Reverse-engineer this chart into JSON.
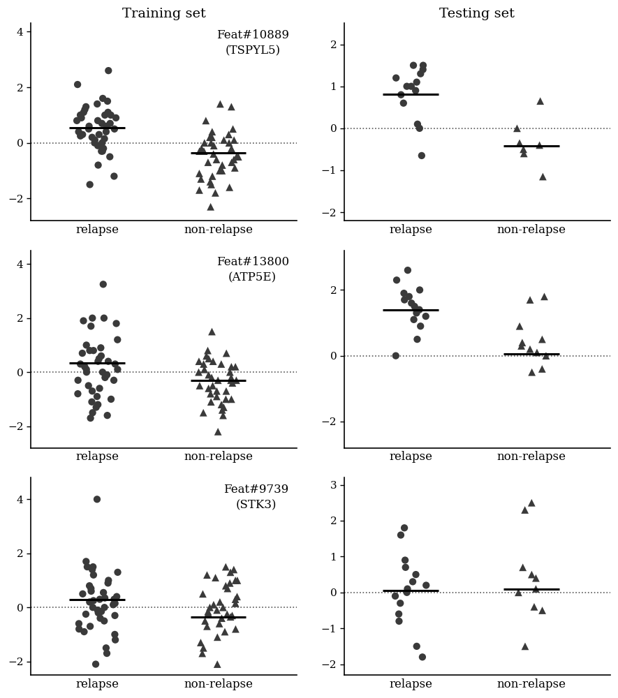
{
  "panels": [
    {
      "col_title": "Training set",
      "annotation": "Feat#10889\n(TSPYL5)",
      "ylim": [
        -2.8,
        4.3
      ],
      "yticks": [
        -2,
        0,
        2,
        4
      ],
      "relapse_mean": 0.55,
      "nonrelapse_mean": -0.35,
      "relapse_dots": [
        2.6,
        2.1,
        1.6,
        1.5,
        1.4,
        1.3,
        1.2,
        1.1,
        1.1,
        1.0,
        1.0,
        0.9,
        0.8,
        0.8,
        0.7,
        0.7,
        0.6,
        0.5,
        0.5,
        0.4,
        0.3,
        0.3,
        0.2,
        0.15,
        0.1,
        0.0,
        0.0,
        -0.1,
        -0.2,
        -0.3,
        -0.5,
        -0.8,
        -1.2,
        -1.5,
        0.25,
        0.6,
        0.9,
        1.0,
        0.4,
        -0.3
      ],
      "nonrelapse_triangles": [
        1.4,
        1.3,
        0.8,
        0.5,
        0.4,
        0.3,
        0.2,
        0.1,
        0.0,
        0.0,
        -0.1,
        -0.2,
        -0.2,
        -0.3,
        -0.4,
        -0.5,
        -0.5,
        -0.6,
        -0.7,
        -0.7,
        -0.8,
        -0.9,
        -1.0,
        -1.0,
        -1.1,
        -1.2,
        -1.3,
        -1.4,
        -1.5,
        -1.6,
        -1.7,
        -1.8,
        -2.3,
        0.1,
        0.2,
        -0.3,
        -0.6,
        0.0
      ]
    },
    {
      "col_title": "Testing set",
      "annotation": "",
      "ylim": [
        -2.2,
        2.5
      ],
      "yticks": [
        -2,
        -1,
        0,
        1,
        2
      ],
      "relapse_mean": 0.82,
      "nonrelapse_mean": -0.42,
      "relapse_dots": [
        1.5,
        1.5,
        1.4,
        1.3,
        1.2,
        1.1,
        1.0,
        1.0,
        0.9,
        0.8,
        0.6,
        0.1,
        0.0,
        -0.65
      ],
      "nonrelapse_triangles": [
        0.65,
        0.0,
        -0.35,
        -0.4,
        -0.5,
        -0.6,
        -1.15
      ]
    },
    {
      "col_title": "",
      "annotation": "Feat#13800\n(ATP5E)",
      "ylim": [
        -2.8,
        4.5
      ],
      "yticks": [
        -2,
        0,
        2,
        4
      ],
      "relapse_mean": 0.35,
      "nonrelapse_mean": -0.3,
      "relapse_dots": [
        3.25,
        2.0,
        2.0,
        1.9,
        1.8,
        1.7,
        1.2,
        1.0,
        0.9,
        0.8,
        0.7,
        0.5,
        0.4,
        0.4,
        0.3,
        0.3,
        0.2,
        0.1,
        0.1,
        0.0,
        0.0,
        -0.1,
        -0.2,
        -0.3,
        -0.3,
        -0.5,
        -0.6,
        -0.7,
        -0.8,
        -0.9,
        -1.0,
        -1.1,
        -1.2,
        -1.3,
        -1.5,
        -1.6,
        -1.7,
        0.6,
        0.8
      ],
      "nonrelapse_triangles": [
        1.5,
        0.8,
        0.7,
        0.6,
        0.5,
        0.4,
        0.3,
        0.2,
        0.2,
        0.1,
        0.0,
        0.0,
        -0.1,
        -0.2,
        -0.2,
        -0.3,
        -0.3,
        -0.4,
        -0.5,
        -0.5,
        -0.6,
        -0.7,
        -0.7,
        -0.8,
        -0.9,
        -1.0,
        -1.0,
        -1.1,
        -1.2,
        -1.3,
        -1.4,
        -1.5,
        -1.6,
        -2.2,
        0.3,
        0.4,
        -0.3
      ]
    },
    {
      "col_title": "",
      "annotation": "",
      "ylim": [
        -2.8,
        3.2
      ],
      "yticks": [
        -2,
        0,
        2
      ],
      "relapse_mean": 1.4,
      "nonrelapse_mean": 0.05,
      "relapse_dots": [
        2.6,
        2.3,
        2.0,
        1.9,
        1.8,
        1.7,
        1.6,
        1.5,
        1.4,
        1.3,
        1.2,
        1.1,
        0.9,
        0.5,
        0.0
      ],
      "nonrelapse_triangles": [
        1.8,
        1.7,
        0.9,
        0.5,
        0.4,
        0.3,
        0.2,
        0.1,
        0.0,
        -0.4,
        -0.5
      ]
    },
    {
      "col_title": "",
      "annotation": "Feat#9739\n(STK3)",
      "ylim": [
        -2.5,
        4.8
      ],
      "yticks": [
        -2,
        0,
        2,
        4
      ],
      "relapse_mean": 0.3,
      "nonrelapse_mean": -0.35,
      "relapse_dots": [
        4.0,
        1.7,
        1.5,
        1.5,
        1.4,
        1.3,
        1.2,
        1.0,
        0.9,
        0.8,
        0.7,
        0.6,
        0.5,
        0.4,
        0.3,
        0.3,
        0.2,
        0.1,
        0.0,
        0.0,
        -0.1,
        -0.2,
        -0.3,
        -0.4,
        -0.5,
        -0.6,
        -0.7,
        -0.8,
        -0.9,
        -1.0,
        -1.2,
        -1.5,
        -1.7,
        -2.1,
        0.15,
        0.25,
        0.35,
        0.55,
        -0.15,
        -0.25
      ],
      "nonrelapse_triangles": [
        1.5,
        1.4,
        1.3,
        1.1,
        1.0,
        0.9,
        0.7,
        0.5,
        0.3,
        0.1,
        0.0,
        0.0,
        -0.1,
        -0.2,
        -0.3,
        -0.5,
        -0.7,
        -0.9,
        -1.1,
        -1.3,
        -1.5,
        -1.7,
        -2.1,
        0.2,
        0.4,
        -0.4,
        -0.6,
        -0.8,
        0.15,
        -0.15,
        0.8,
        1.0,
        1.2,
        -0.25,
        -0.35
      ]
    },
    {
      "col_title": "",
      "annotation": "",
      "ylim": [
        -2.3,
        3.2
      ],
      "yticks": [
        -2,
        -1,
        0,
        1,
        2,
        3
      ],
      "relapse_mean": 0.05,
      "nonrelapse_mean": 0.1,
      "relapse_dots": [
        1.8,
        1.6,
        0.9,
        0.5,
        0.3,
        0.1,
        0.0,
        -0.1,
        -0.3,
        -0.6,
        -1.5,
        -1.8,
        0.7,
        0.2,
        -0.8
      ],
      "nonrelapse_triangles": [
        2.5,
        2.3,
        0.7,
        0.5,
        0.4,
        0.1,
        0.0,
        -0.4,
        -0.5,
        -1.5
      ]
    }
  ],
  "dot_color": "#3a3a3a",
  "dot_size": 55,
  "triangle_size": 60,
  "mean_line_color": "#000000",
  "dashed_line_color": "#555555",
  "jitter_scale_train": 0.17,
  "jitter_scale_test": 0.13,
  "mean_line_halfwidth": 0.23
}
